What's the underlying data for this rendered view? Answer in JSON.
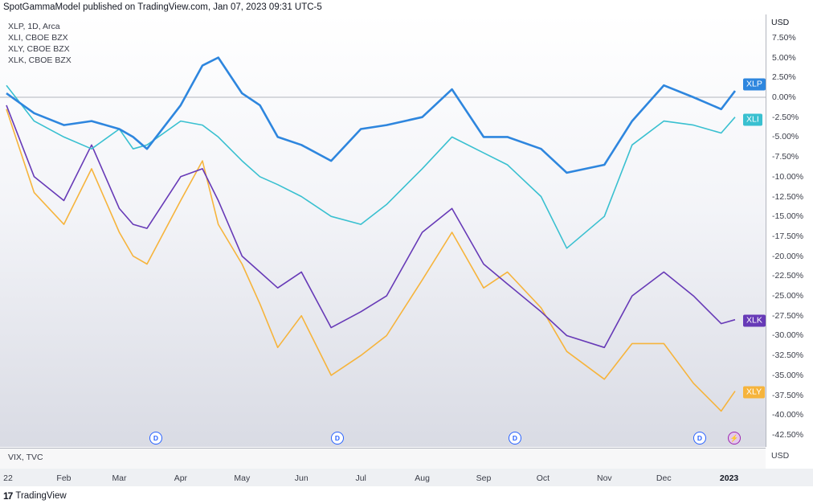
{
  "header": "SpotGammaModel published on TradingView.com, Jan 07, 2023 09:31 UTC-5",
  "symbols": [
    "XLP, 1D, Arca",
    "XLI, CBOE BZX",
    "XLY, CBOE BZX",
    "XLK, CBOE BZX"
  ],
  "axis_unit": "USD",
  "lower_pane": {
    "label": "VIX, TVC",
    "unit": "USD"
  },
  "x_ticks": [
    "22",
    "Feb",
    "Mar",
    "Apr",
    "May",
    "Jun",
    "Jul",
    "Aug",
    "Sep",
    "Oct",
    "Nov",
    "Dec",
    "2023"
  ],
  "y_ticks": [
    "7.50%",
    "5.00%",
    "2.50%",
    "0.00%",
    "-2.50%",
    "-5.00%",
    "-7.50%",
    "-10.00%",
    "-12.50%",
    "-15.00%",
    "-17.50%",
    "-20.00%",
    "-22.50%",
    "-25.00%",
    "-27.50%",
    "-30.00%",
    "-32.50%",
    "-35.00%",
    "-37.50%",
    "-40.00%",
    "-42.50%"
  ],
  "markers": {
    "dividend": "D",
    "split": "⚡"
  },
  "footer": "TradingView",
  "chart_data": {
    "type": "line",
    "ylabel": "USD",
    "ylim": [
      -44,
      10
    ],
    "x": [
      "2022-01-03",
      "2022-01-17",
      "2022-02-01",
      "2022-02-15",
      "2022-03-01",
      "2022-03-08",
      "2022-03-15",
      "2022-04-01",
      "2022-04-12",
      "2022-04-20",
      "2022-05-02",
      "2022-05-11",
      "2022-05-20",
      "2022-06-01",
      "2022-06-16",
      "2022-07-01",
      "2022-07-14",
      "2022-08-01",
      "2022-08-16",
      "2022-09-01",
      "2022-09-13",
      "2022-09-30",
      "2022-10-13",
      "2022-11-01",
      "2022-11-15",
      "2022-12-01",
      "2022-12-16",
      "2022-12-30",
      "2023-01-06"
    ],
    "series": [
      {
        "name": "XLP",
        "color": "#2e86de",
        "values": [
          0.5,
          -2.0,
          -3.5,
          -3.0,
          -4.0,
          -5.0,
          -6.5,
          -1.0,
          4.0,
          5.0,
          0.5,
          -1.0,
          -5.0,
          -6.0,
          -8.0,
          -4.0,
          -3.5,
          -2.5,
          1.0,
          -5.0,
          -5.0,
          -6.5,
          -9.5,
          -8.5,
          -3.0,
          1.5,
          0.0,
          -1.5,
          0.8
        ]
      },
      {
        "name": "XLI",
        "color": "#39c0d0",
        "values": [
          1.5,
          -3.0,
          -5.0,
          -6.5,
          -4.0,
          -6.5,
          -6.0,
          -3.0,
          -3.5,
          -5.0,
          -8.0,
          -10.0,
          -11.0,
          -12.5,
          -15.0,
          -16.0,
          -13.5,
          -9.0,
          -5.0,
          -7.0,
          -8.5,
          -12.5,
          -19.0,
          -15.0,
          -6.0,
          -3.0,
          -3.5,
          -4.5,
          -2.5
        ]
      },
      {
        "name": "XLK",
        "color": "#673ab7",
        "values": [
          -1.0,
          -10.0,
          -13.0,
          -6.0,
          -14.0,
          -16.0,
          -16.5,
          -10.0,
          -9.0,
          -13.0,
          -20.0,
          -22.0,
          -24.0,
          -22.0,
          -29.0,
          -27.0,
          -25.0,
          -17.0,
          -14.0,
          -21.0,
          -23.5,
          -27.0,
          -30.0,
          -31.5,
          -25.0,
          -22.0,
          -25.0,
          -28.5,
          -28.0
        ]
      },
      {
        "name": "XLY",
        "color": "#f6b43c",
        "values": [
          -1.5,
          -12.0,
          -16.0,
          -9.0,
          -17.0,
          -20.0,
          -21.0,
          -13.0,
          -8.0,
          -16.0,
          -21.0,
          -26.0,
          -31.5,
          -27.5,
          -35.0,
          -32.5,
          -30.0,
          -23.0,
          -17.0,
          -24.0,
          -22.0,
          -26.5,
          -32.0,
          -35.5,
          -31.0,
          -31.0,
          -36.0,
          -39.5,
          -37.0
        ]
      }
    ]
  }
}
